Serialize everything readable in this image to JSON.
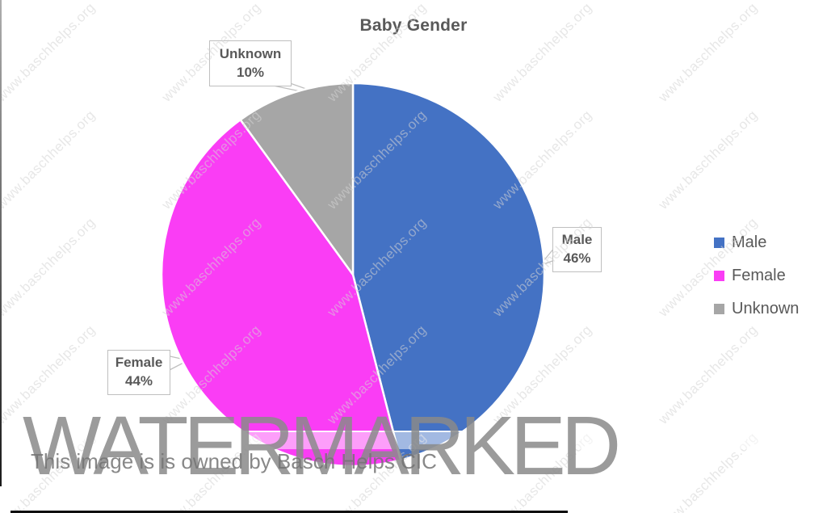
{
  "chart_data": {
    "type": "pie",
    "title": "Baby Gender",
    "categories": [
      "Male",
      "Female",
      "Unknown"
    ],
    "values": [
      46,
      44,
      10
    ],
    "unit": "%",
    "colors": {
      "Male": "#4472C4",
      "Female": "#FA3DF5",
      "Unknown": "#A6A6A6"
    },
    "start_angle_deg": 0,
    "direction": "clockwise",
    "legend_position": "right",
    "data_labels": [
      {
        "category": "Male",
        "percent": "46%"
      },
      {
        "category": "Female",
        "percent": "44%"
      },
      {
        "category": "Unknown",
        "percent": "10%"
      }
    ]
  },
  "legend": {
    "items": [
      {
        "label": "Male",
        "color": "#4472C4"
      },
      {
        "label": "Female",
        "color": "#FA3DF5"
      },
      {
        "label": "Unknown",
        "color": "#A6A6A6"
      }
    ]
  },
  "watermark": {
    "big_text": "WATERMARKED",
    "owner_text": "This image is is owned by Basch Helps CIC",
    "diagonal_text": "www.baschhelps.org"
  }
}
